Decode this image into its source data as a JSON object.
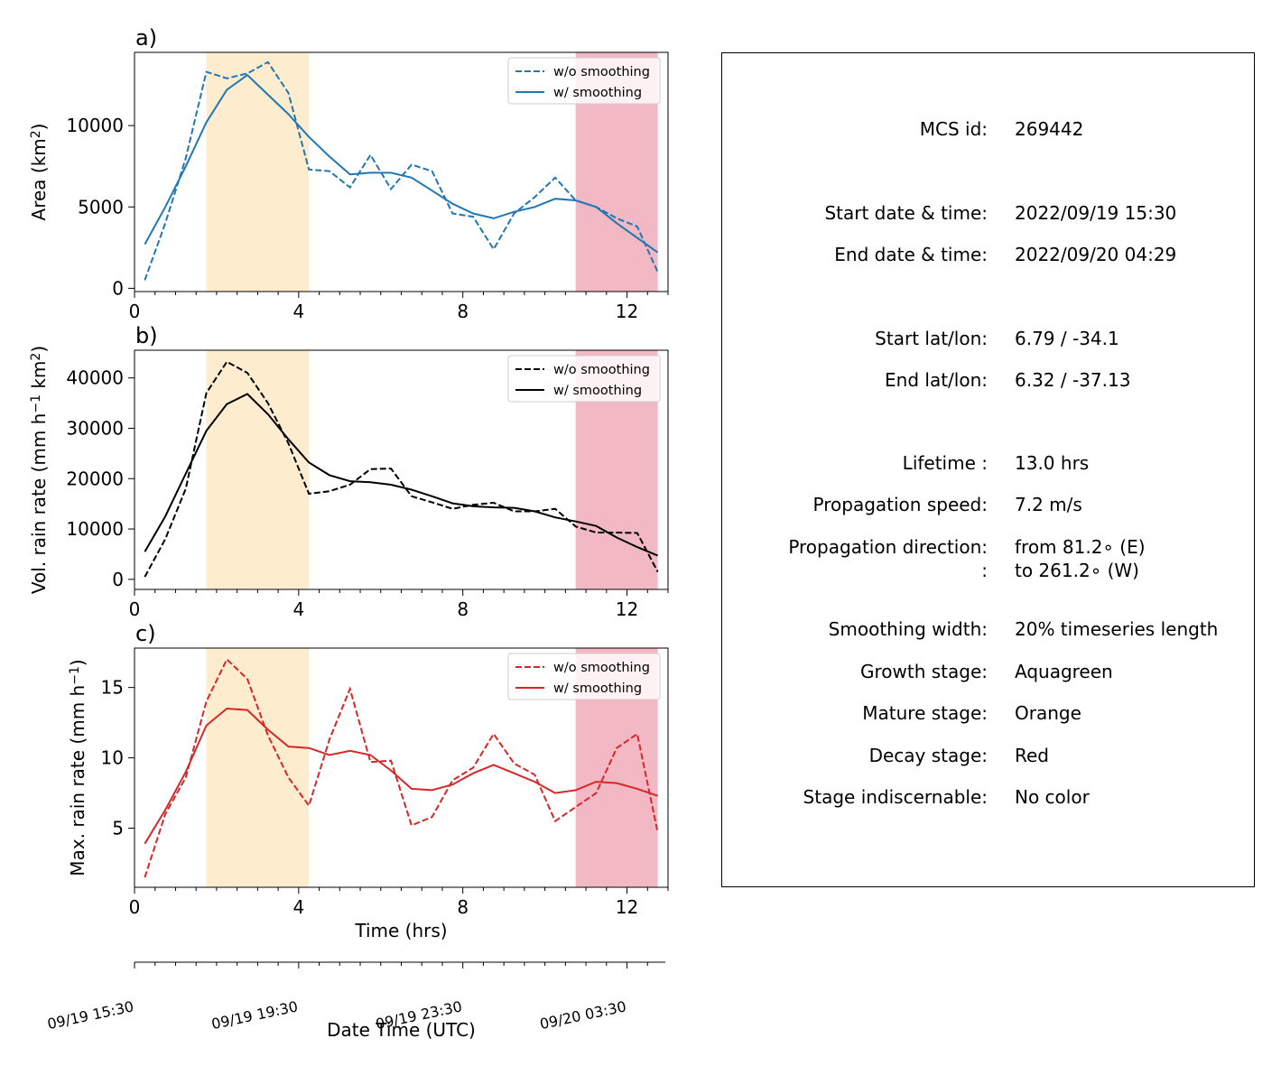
{
  "chart_data": [
    {
      "type": "line",
      "panel": "a)",
      "ylabel": "Area  (km",
      "ylabel_sup": "2",
      "ylabel_end": ")",
      "xlim": [
        0,
        13
      ],
      "ylim": [
        -200,
        14500
      ],
      "xticks": [
        0,
        4,
        8,
        12
      ],
      "yticks": [
        0,
        5000,
        10000
      ],
      "color": "#1f77b4",
      "x": [
        0.25,
        0.75,
        1.25,
        1.75,
        2.25,
        2.75,
        3.25,
        3.75,
        4.25,
        4.75,
        5.25,
        5.75,
        6.25,
        6.75,
        7.25,
        7.75,
        8.25,
        8.75,
        9.25,
        9.75,
        10.25,
        10.75,
        11.25,
        11.75,
        12.25,
        12.75
      ],
      "series": [
        {
          "name": "w/o smoothing",
          "style": "dashed",
          "values": [
            500,
            4000,
            8000,
            13300,
            12900,
            13200,
            13900,
            12000,
            7300,
            7200,
            6200,
            8200,
            6100,
            7600,
            7200,
            4600,
            4400,
            2400,
            4600,
            5600,
            6800,
            5400,
            5000,
            4300,
            3800,
            1000
          ]
        },
        {
          "name": "w/ smoothing",
          "style": "solid",
          "values": [
            2700,
            5000,
            7500,
            10200,
            12200,
            13100,
            11900,
            10700,
            9300,
            8100,
            7000,
            7100,
            7100,
            6800,
            6000,
            5200,
            4600,
            4300,
            4700,
            5000,
            5500,
            5400,
            5000,
            4000,
            3100,
            2200
          ]
        }
      ],
      "legend": {
        "loc": "top-right",
        "entries": [
          "w/o smoothing",
          "w/ smoothing"
        ]
      }
    },
    {
      "type": "line",
      "panel": "b)",
      "ylabel": "Vol. rain rate (mm h",
      "ylabel_sup1": "−1",
      "ylabel_mid": " km",
      "ylabel_sup2": "2",
      "ylabel_end": ")",
      "xlim": [
        0,
        13
      ],
      "ylim": [
        -2000,
        45500
      ],
      "xticks": [
        0,
        4,
        8,
        12
      ],
      "yticks": [
        0,
        10000,
        20000,
        30000,
        40000
      ],
      "color": "#000000",
      "x": [
        0.25,
        0.75,
        1.25,
        1.75,
        2.25,
        2.75,
        3.25,
        3.75,
        4.25,
        4.75,
        5.25,
        5.75,
        6.25,
        6.75,
        7.25,
        7.75,
        8.25,
        8.75,
        9.25,
        9.75,
        10.25,
        10.75,
        11.25,
        11.75,
        12.25,
        12.75
      ],
      "series": [
        {
          "name": "w/o smoothing",
          "style": "dashed",
          "values": [
            500,
            8000,
            18000,
            37000,
            43200,
            41000,
            35000,
            27000,
            17000,
            17500,
            18800,
            21900,
            22000,
            16500,
            15300,
            14000,
            14800,
            15200,
            13500,
            13500,
            14000,
            10500,
            9300,
            9300,
            9200,
            1500
          ]
        },
        {
          "name": "w/ smoothing",
          "style": "solid",
          "values": [
            5500,
            12500,
            21000,
            29500,
            34800,
            36800,
            32800,
            27800,
            23200,
            20700,
            19500,
            19300,
            18800,
            17800,
            16500,
            15100,
            14500,
            14300,
            14200,
            13500,
            12300,
            11500,
            10600,
            8300,
            6400,
            4700
          ]
        }
      ],
      "legend": {
        "loc": "top-right",
        "entries": [
          "w/o smoothing",
          "w/ smoothing"
        ]
      }
    },
    {
      "type": "line",
      "panel": "c)",
      "ylabel": "Max. rain rate  (mm h",
      "ylabel_sup": "−1",
      "ylabel_end": ")",
      "xlabel": "Time (hrs)",
      "xlim": [
        0,
        13
      ],
      "ylim": [
        0.8,
        17.8
      ],
      "xticks": [
        0,
        4,
        8,
        12
      ],
      "yticks": [
        5,
        10,
        15
      ],
      "color": "#d62728",
      "x": [
        0.25,
        0.75,
        1.25,
        1.75,
        2.25,
        2.75,
        3.25,
        3.75,
        4.25,
        4.75,
        5.25,
        5.75,
        6.25,
        6.75,
        7.25,
        7.75,
        8.25,
        8.75,
        9.25,
        9.75,
        10.25,
        10.75,
        11.25,
        11.75,
        12.25,
        12.75
      ],
      "series": [
        {
          "name": "w/o smoothing",
          "style": "dashed",
          "values": [
            1.5,
            6.0,
            8.6,
            14.0,
            17.0,
            15.6,
            11.6,
            8.6,
            6.6,
            11.3,
            14.9,
            9.7,
            9.8,
            5.2,
            5.8,
            8.4,
            9.3,
            11.7,
            9.6,
            8.8,
            5.5,
            6.5,
            7.5,
            10.7,
            11.7,
            4.7
          ]
        },
        {
          "name": "w/ smoothing",
          "style": "solid",
          "values": [
            3.9,
            6.3,
            9.0,
            12.3,
            13.5,
            13.4,
            12.0,
            10.8,
            10.7,
            10.2,
            10.5,
            10.2,
            9.1,
            7.8,
            7.7,
            8.1,
            8.9,
            9.5,
            8.9,
            8.3,
            7.5,
            7.7,
            8.3,
            8.2,
            7.8,
            7.3
          ]
        }
      ],
      "legend": {
        "loc": "top-right",
        "entries": [
          "w/o smoothing",
          "w/ smoothing"
        ]
      }
    }
  ],
  "stages": [
    {
      "name": "Mature stage",
      "color": "#fdeccd",
      "x_start": 1.75,
      "x_end": 4.25
    },
    {
      "name": "Decay stage",
      "color": "#f2b8c4",
      "x_start": 10.75,
      "x_end": 12.75
    }
  ],
  "date_axis": {
    "xlabel": "Date Time (UTC)",
    "tick_labels": [
      "09/19 15:30",
      "09/19 19:30",
      "09/19 23:30",
      "09/20 03:30"
    ],
    "tick_hours": [
      0,
      4,
      8,
      12
    ]
  },
  "info_panel": {
    "rows": [
      {
        "label": "MCS id:",
        "value": "269442"
      },
      {
        "label": "Start date & time:",
        "value": "2022/09/19 15:30"
      },
      {
        "label": "End date & time:",
        "value": "2022/09/20 04:29"
      },
      {
        "label": "Start lat/lon:",
        "value": "6.79 / -34.1"
      },
      {
        "label": "End lat/lon:",
        "value": "6.32 / -37.13"
      },
      {
        "label": "Lifetime :",
        "value": "13.0 hrs"
      },
      {
        "label": "Propagation speed:",
        "value": "7.2 m/s"
      },
      {
        "label": "Propagation direction:",
        "value": "from  81.2∘ (E)"
      },
      {
        "label": ":",
        "value": "to   261.2∘ (W)"
      },
      {
        "label": "Smoothing width:",
        "value": "20% timeseries length"
      },
      {
        "label": "Growth stage:",
        "value": "Aquagreen"
      },
      {
        "label": "Mature stage:",
        "value": "Orange"
      },
      {
        "label": "Decay stage:",
        "value": "Red"
      },
      {
        "label": "Stage indiscernable:",
        "value": "No color"
      }
    ]
  }
}
